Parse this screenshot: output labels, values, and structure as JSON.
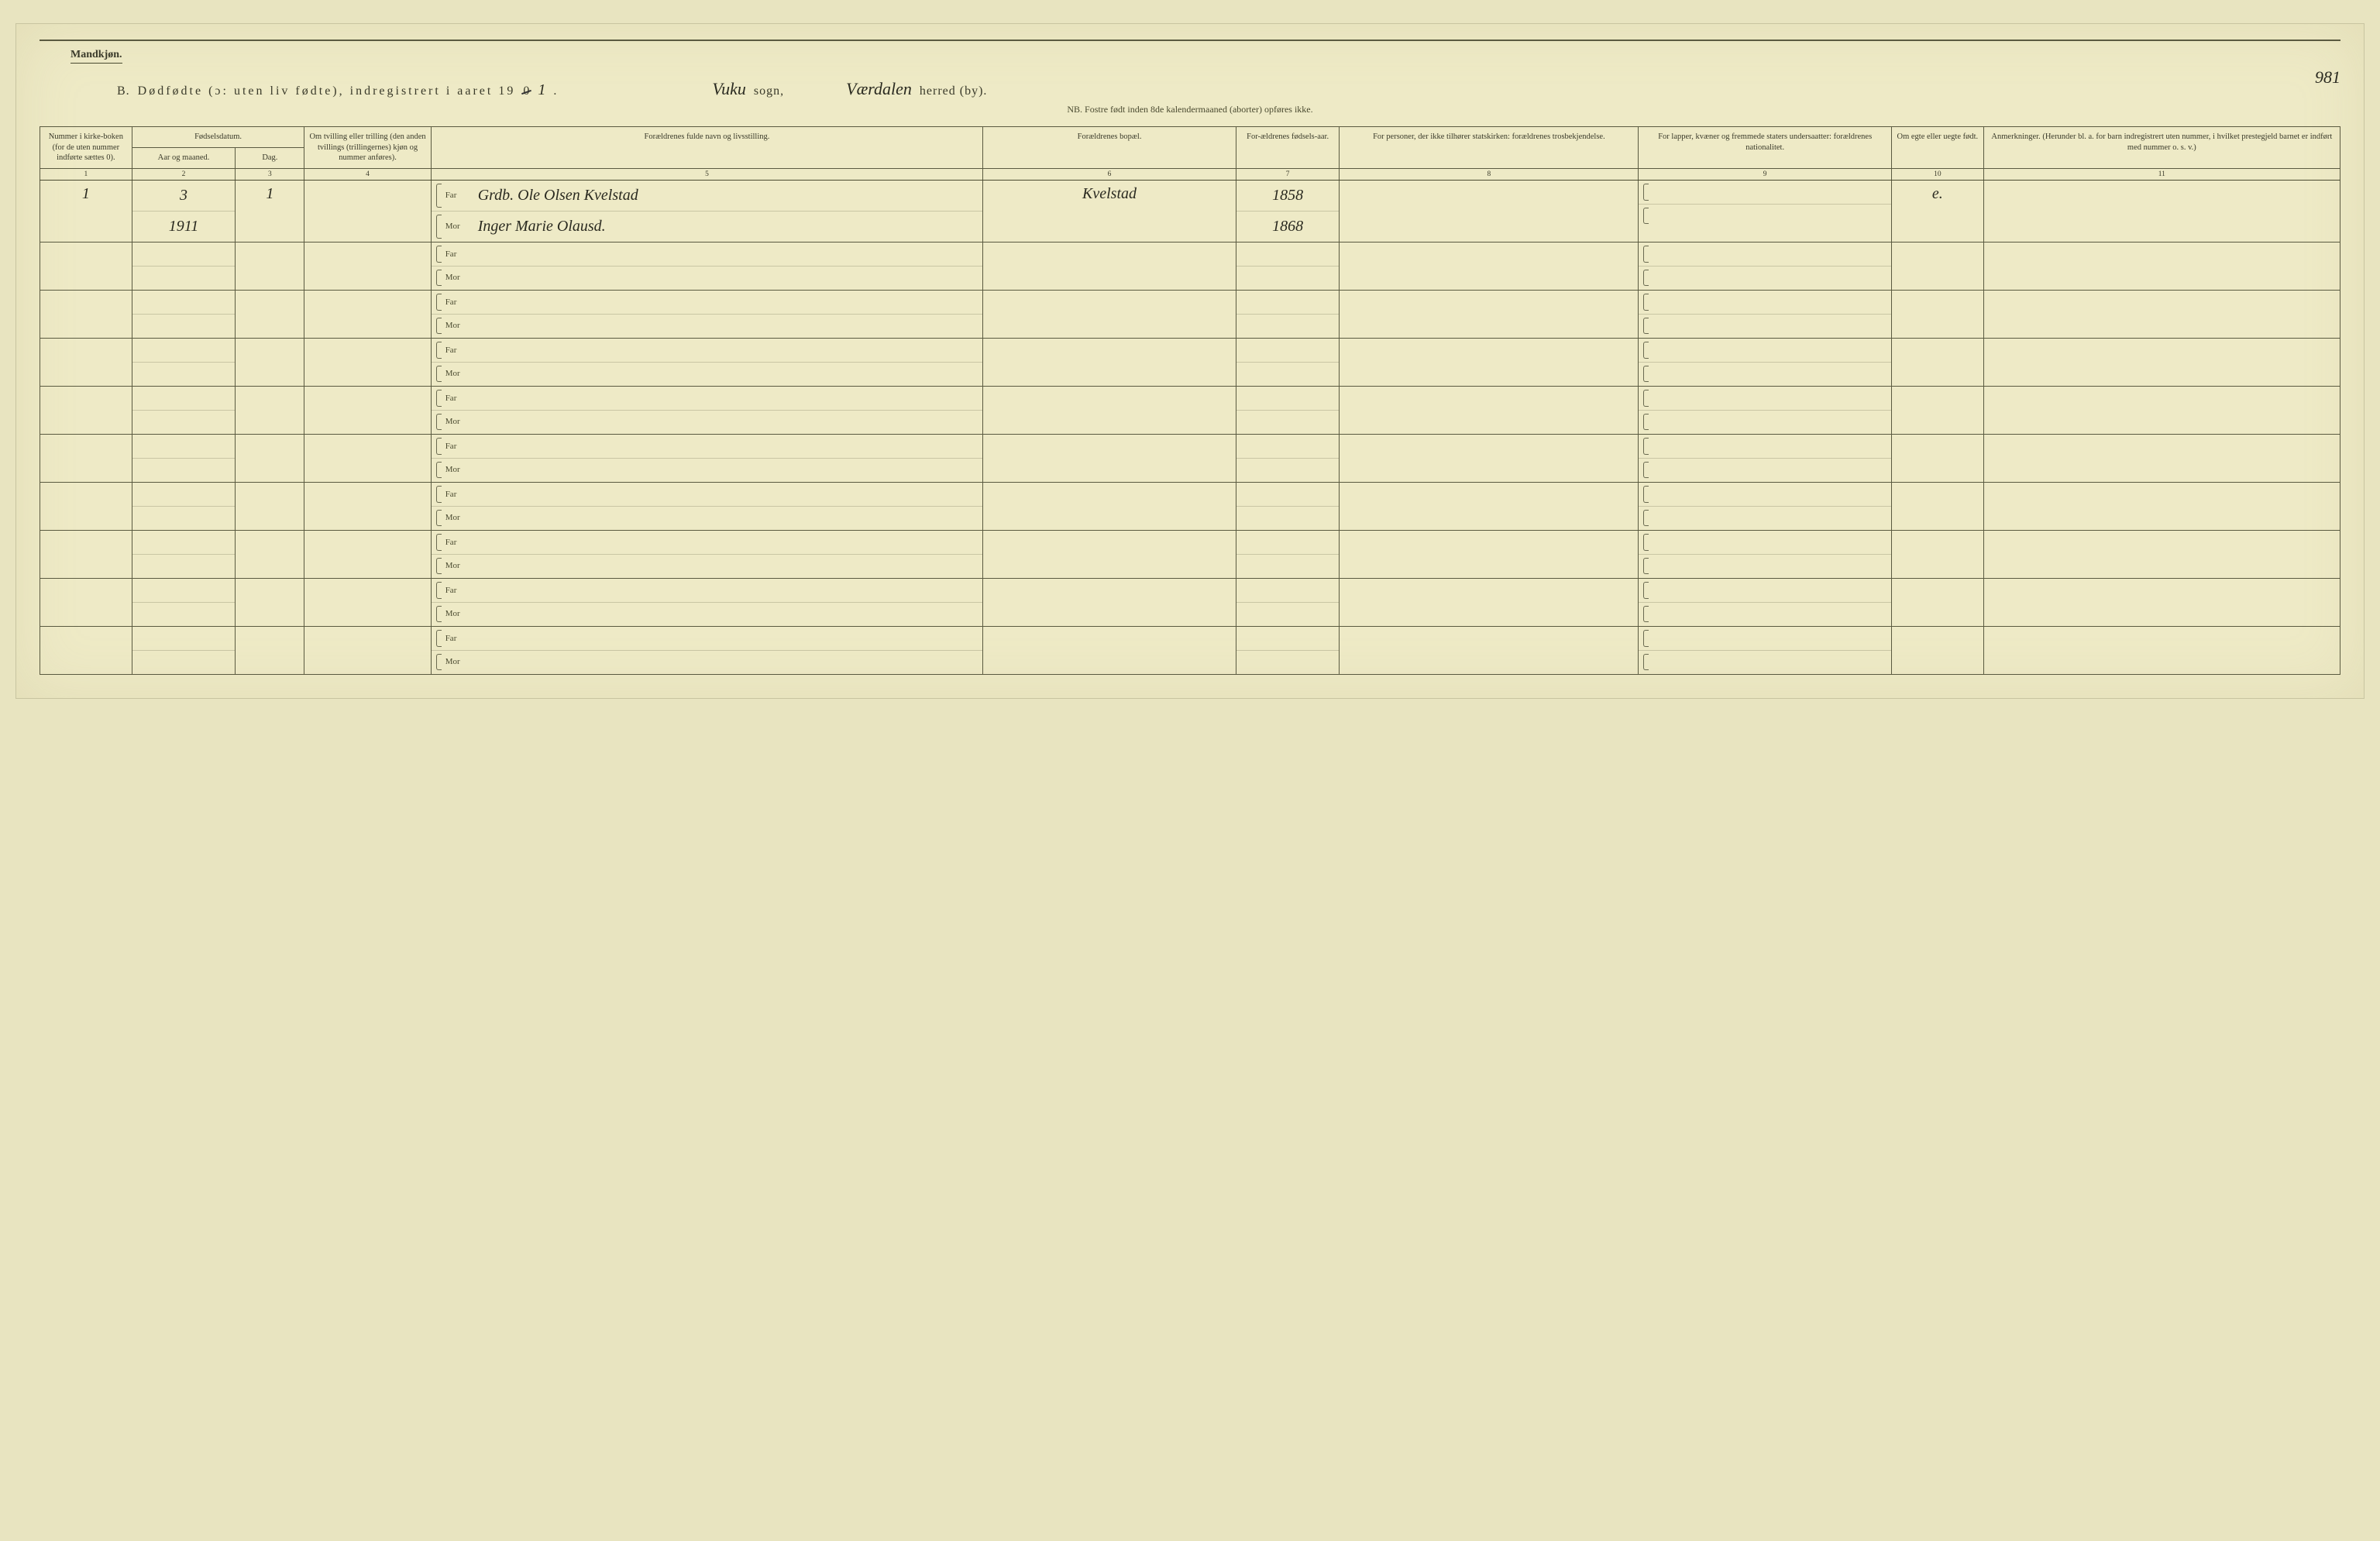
{
  "header": {
    "gender_label": "Mandkjøn.",
    "title_prefix": "B.",
    "title_main": "Dødfødte (ɔ: uten liv fødte), indregistrert i aaret 19",
    "title_year_struck": "0",
    "title_year_hand": "1",
    "title_suffix": ".",
    "sogn_hand": "Vuku",
    "sogn_label": "sogn,",
    "herred_hand": "Værdalen",
    "herred_label": "herred (by).",
    "page_number_hand": "981",
    "nb_line": "NB. Fostre født inden 8de kalendermaaned (aborter) opføres ikke."
  },
  "columns": {
    "c1": "Nummer i kirke-boken (for de uten nummer indførte sættes 0).",
    "c_fd": "Fødselsdatum.",
    "c2": "Aar og maaned.",
    "c3": "Dag.",
    "c4": "Om tvilling eller trilling (den anden tvillings (trillingernes) kjøn og nummer anføres).",
    "c5": "Forældrenes fulde navn og livsstilling.",
    "c6": "Forældrenes bopæl.",
    "c7": "For-ældrenes fødsels-aar.",
    "c8": "For personer, der ikke tilhører statskirken: forældrenes trosbekjendelse.",
    "c9": "For lapper, kvæner og fremmede staters undersaatter: forældrenes nationalitet.",
    "c10": "Om egte eller uegte født.",
    "c11": "Anmerkninger. (Herunder bl. a. for barn indregistrert uten nummer, i hvilket prestegjeld barnet er indført med nummer o. s. v.)"
  },
  "colnums": [
    "1",
    "2",
    "3",
    "4",
    "5",
    "6",
    "7",
    "8",
    "9",
    "10",
    "11"
  ],
  "labels": {
    "far": "Far",
    "mor": "Mor"
  },
  "rows": [
    {
      "num": "1",
      "aar_top": "3",
      "aar_bot": "1911",
      "dag": "1",
      "tvilling": "",
      "far": "Grdb. Ole Olsen Kvelstad",
      "mor": "Inger Marie Olausd.",
      "bopel": "Kvelstad",
      "faar_far": "1858",
      "faar_mor": "1868",
      "tros": "",
      "nat": "",
      "egte": "e.",
      "anm": ""
    },
    {},
    {},
    {},
    {},
    {},
    {},
    {},
    {},
    {}
  ],
  "style": {
    "bg": "#eeeac6",
    "line": "#5a5a40",
    "text": "#3a3a2a",
    "hand": "#2a2a20"
  }
}
